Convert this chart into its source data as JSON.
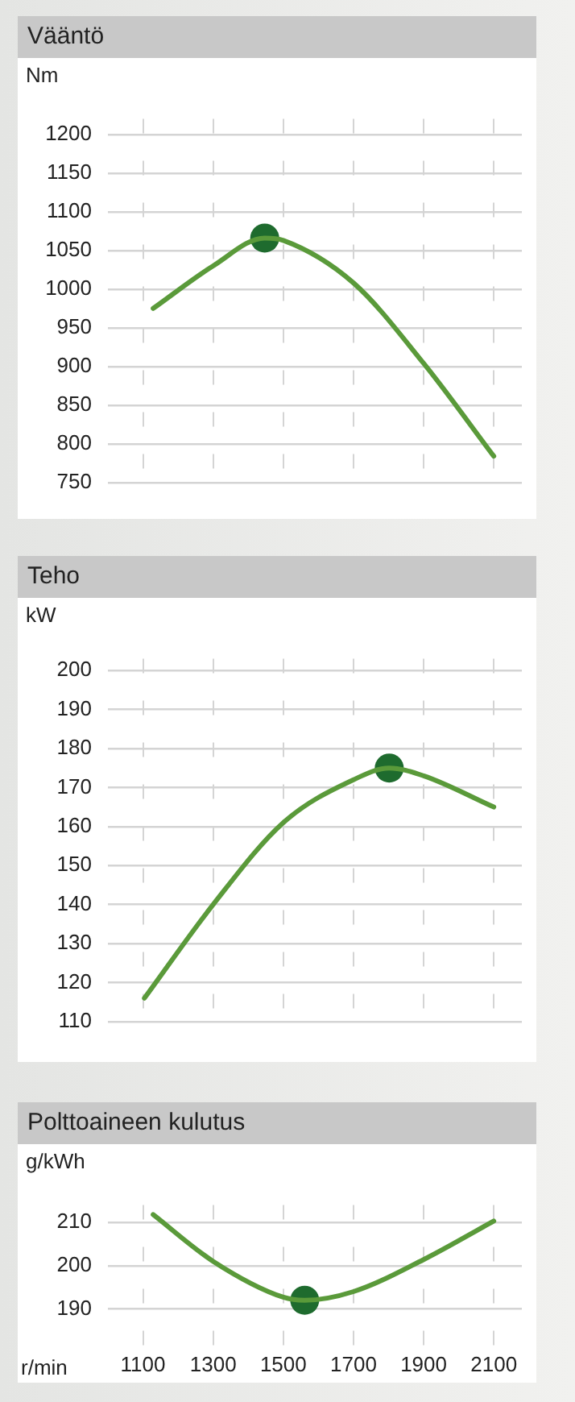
{
  "chart_data": [
    {
      "type": "line",
      "title": "Vääntö",
      "ylabel": "Nm",
      "xlim": [
        1000,
        2180
      ],
      "xticks": [
        1100,
        1300,
        1500,
        1700,
        1900,
        2100
      ],
      "ylim": [
        740,
        1220
      ],
      "yticks": [
        750,
        800,
        850,
        900,
        950,
        1000,
        1050,
        1100,
        1150,
        1200
      ],
      "tick_labels": "y",
      "grid": true,
      "legend": false,
      "series": [
        {
          "type": "line",
          "color": "#5a9a3a",
          "line_style": "solid",
          "marker": "none",
          "x": [
            1129,
            1300,
            1447,
            1500,
            1700,
            1900,
            2100
          ],
          "values": [
            975,
            1030,
            1066,
            1063,
            1008,
            904,
            784
          ]
        },
        {
          "type": "scatter",
          "color": "#1e6b2e",
          "marker": "circle",
          "x": [
            1447
          ],
          "values": [
            1066
          ]
        }
      ]
    },
    {
      "type": "line",
      "title": "Teho",
      "ylabel": "kW",
      "xlim": [
        1000,
        2180
      ],
      "xticks": [
        1100,
        1300,
        1500,
        1700,
        1900,
        2100
      ],
      "ylim": [
        107,
        203
      ],
      "yticks": [
        110,
        120,
        130,
        140,
        150,
        160,
        170,
        180,
        190,
        200
      ],
      "tick_labels": "y",
      "grid": true,
      "legend": false,
      "series": [
        {
          "type": "line",
          "color": "#5a9a3a",
          "line_style": "solid",
          "marker": "none",
          "x": [
            1104,
            1300,
            1500,
            1700,
            1802,
            1900,
            2100
          ],
          "values": [
            116,
            140,
            161,
            172,
            175,
            173,
            165
          ]
        },
        {
          "type": "scatter",
          "color": "#1e6b2e",
          "marker": "circle",
          "x": [
            1802
          ],
          "values": [
            175
          ]
        }
      ]
    },
    {
      "type": "line",
      "title": "Polttoaineen kulutus",
      "ylabel": "g/kWh",
      "xlabel": "r/min",
      "xlim": [
        1000,
        2180
      ],
      "xticks": [
        1100,
        1300,
        1500,
        1700,
        1900,
        2100
      ],
      "ylim": [
        181,
        214
      ],
      "yticks": [
        190,
        200,
        210
      ],
      "grid": true,
      "legend": false,
      "series": [
        {
          "type": "line",
          "color": "#5a9a3a",
          "line_style": "solid",
          "marker": "none",
          "x": [
            1129,
            1300,
            1500,
            1561,
            1700,
            1900,
            2100
          ],
          "values": [
            211.8,
            201,
            192.7,
            192,
            194,
            201.4,
            210.3
          ]
        },
        {
          "type": "scatter",
          "color": "#1e6b2e",
          "marker": "circle",
          "x": [
            1561
          ],
          "values": [
            192
          ]
        }
      ]
    }
  ]
}
